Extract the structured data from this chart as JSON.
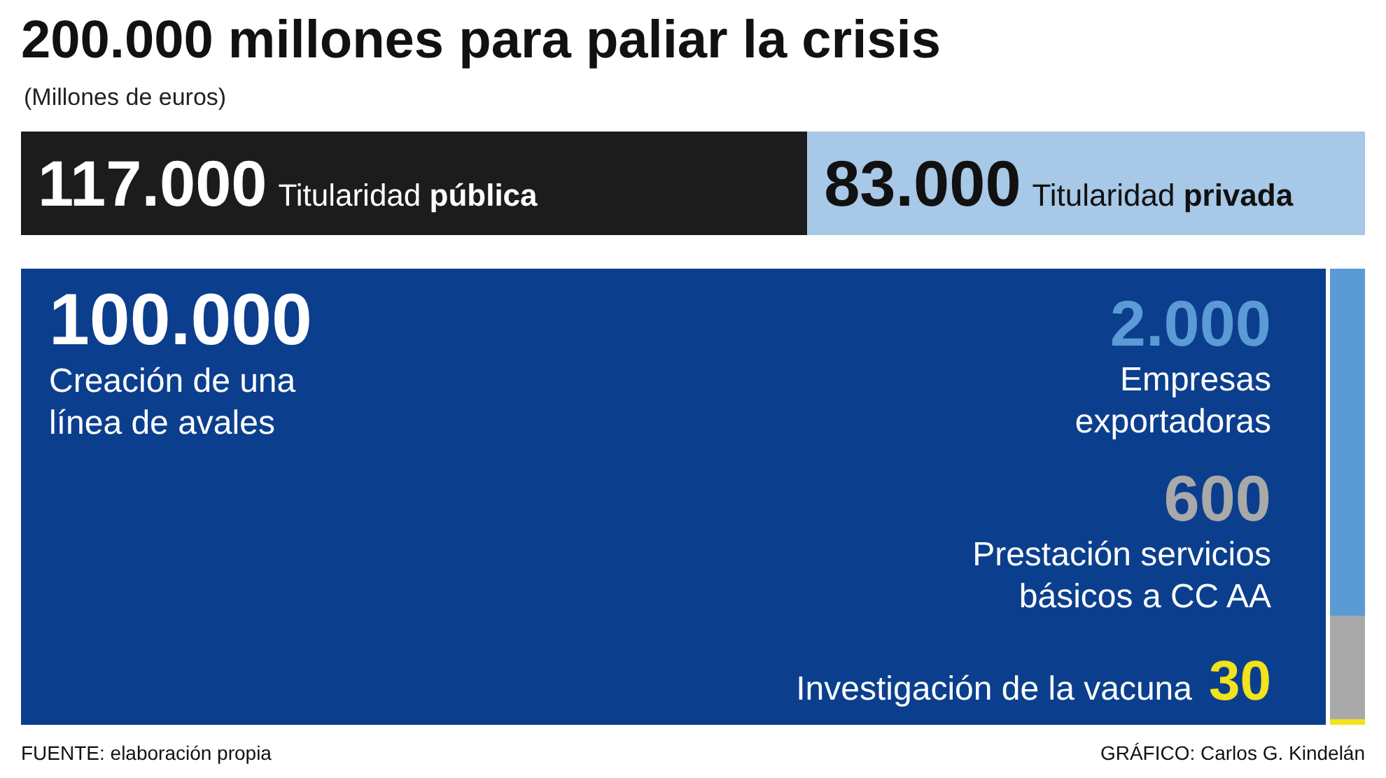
{
  "chart_data": [
    {
      "type": "bar",
      "title": "200.000 millones para paliar la crisis",
      "subtitle": "(Millones de euros)",
      "orientation": "horizontal",
      "stacked": true,
      "categories": [
        null
      ],
      "series": [
        {
          "name": "Titularidad pública",
          "color": "#1c1c1c",
          "values": [
            117000
          ],
          "value_labels": [
            "117.000"
          ]
        },
        {
          "name": "Titularidad privada",
          "color": "#a7c8e6",
          "values": [
            83000
          ],
          "value_labels": [
            "83.000"
          ]
        }
      ]
    },
    {
      "type": "other",
      "categories": [
        "Creación de una línea de avales",
        "Empresas exportadoras",
        "Prestación servicios básicos a CC AA",
        "Investigación de la vacuna"
      ],
      "values": [
        100000,
        2000,
        600,
        30
      ],
      "value_labels": [
        "100.000",
        "2.000",
        "600",
        "30"
      ],
      "colors": [
        "#0b3f8e",
        "#5b9bd5",
        "#a9a9a9",
        "#f2e31a"
      ],
      "annotations": [
        "FUENTE: elaboración propia",
        "GRÁFICO: Carlos G. Kindelán"
      ]
    }
  ]
}
